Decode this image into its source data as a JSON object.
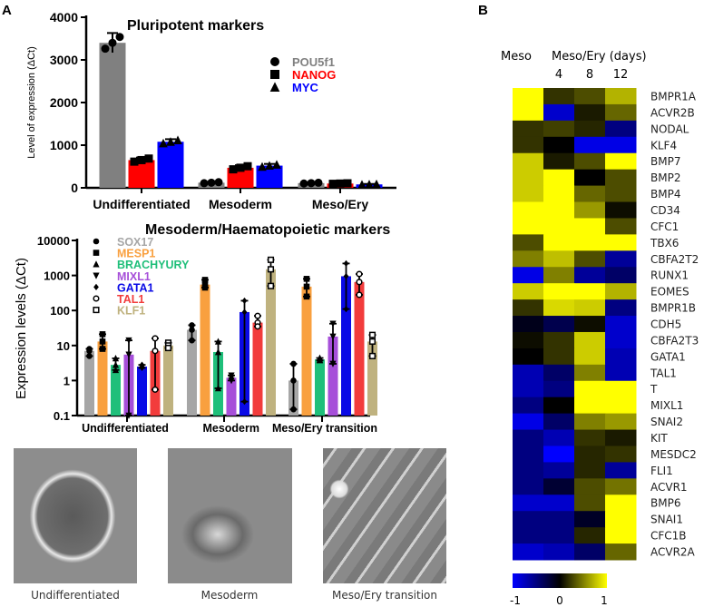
{
  "panel_labels": {
    "a": "A",
    "b": "B"
  },
  "chart_data": [
    {
      "type": "bar",
      "title": "Pluripotent markers",
      "ylabel": "Level of expression (ΔCt)",
      "xlabel": "",
      "ylim": [
        0,
        4000
      ],
      "yticks": [
        "0",
        "1000",
        "2000",
        "3000",
        "4000"
      ],
      "categories": [
        "Undifferentiated",
        "Mesoderm",
        "Meso/Ery"
      ],
      "legend_position": "top-right",
      "series": [
        {
          "name": "POU5f1",
          "color": "#808080",
          "marker": "circle",
          "values": [
            3400,
            120,
            110
          ],
          "err": [
            230,
            20,
            15
          ]
        },
        {
          "name": "NANOG",
          "color": "#ff0000",
          "marker": "square",
          "values": [
            650,
            470,
            100
          ],
          "err": [
            60,
            60,
            10
          ]
        },
        {
          "name": "MYC",
          "color": "#0000ff",
          "marker": "triangle",
          "values": [
            1080,
            520,
            80
          ],
          "err": [
            60,
            40,
            10
          ]
        }
      ]
    },
    {
      "type": "bar",
      "title": "Mesoderm/Haematopoietic markers",
      "ylabel": "Expression levels (ΔCt)",
      "xlabel": "",
      "yscale": "log",
      "ylim": [
        0.1,
        10000
      ],
      "yticks": [
        "0.1",
        "1",
        "10",
        "100",
        "1000",
        "10000"
      ],
      "categories": [
        "Undifferentiated",
        "Mesoderm",
        "Meso/Ery transition"
      ],
      "legend_position": "top-left",
      "series": [
        {
          "name": "SOX17",
          "color": "#a6a6a6",
          "marker": "circle",
          "values": [
            7,
            28,
            1
          ],
          "lo": [
            5,
            14,
            0.15
          ],
          "hi": [
            8,
            38,
            3
          ]
        },
        {
          "name": "MESP1",
          "color": "#f9a03f",
          "marker": "square",
          "values": [
            13,
            550,
            480
          ],
          "lo": [
            8,
            450,
            250
          ],
          "hi": [
            21,
            750,
            800
          ]
        },
        {
          "name": "BRACHYURY",
          "color": "#1fbf7a",
          "marker": "triangle",
          "values": [
            2.8,
            6.5,
            4
          ],
          "lo": [
            2,
            0.6,
            3.8
          ],
          "hi": [
            4.3,
            13,
            4.4
          ]
        },
        {
          "name": "MIXL1",
          "color": "#a64fd9",
          "marker": "triangle-down",
          "values": [
            5.5,
            1.2,
            18
          ],
          "lo": [
            0.1,
            1,
            3
          ],
          "hi": [
            14,
            1.4,
            42
          ]
        },
        {
          "name": "GATA1",
          "color": "#0a0ae6",
          "marker": "diamond",
          "values": [
            2.5,
            90,
            950
          ],
          "lo": [
            2.3,
            0.25,
            110
          ],
          "hi": [
            2.8,
            190,
            2200
          ]
        },
        {
          "name": "TAL1",
          "color": "#f23c3c",
          "marker": "open-circle",
          "values": [
            7,
            45,
            650
          ],
          "lo": [
            0.55,
            35,
            280
          ],
          "hi": [
            16,
            70,
            1100
          ]
        },
        {
          "name": "KLF1",
          "color": "#bfb27f",
          "marker": "open-square",
          "values": [
            10,
            1500,
            13
          ],
          "lo": [
            8.5,
            500,
            5
          ],
          "hi": [
            12,
            2800,
            20
          ]
        }
      ]
    },
    {
      "type": "heatmap",
      "column_group_labels": [
        "Meso",
        "Meso/Ery (days)"
      ],
      "columns": [
        "",
        "4",
        "8",
        "12"
      ],
      "colorscale": {
        "min": -1,
        "mid": 0,
        "max": 1,
        "colors": [
          "#0000ff",
          "#000000",
          "#ffff00"
        ],
        "tick_labels": [
          "-1",
          "0",
          "1"
        ]
      },
      "rows": [
        "BMPR1A",
        "ACVR2B",
        "NODAL",
        "KLF4",
        "BMP7",
        "BMP2",
        "BMP4",
        "CD34",
        "CFC1",
        "TBX6",
        "CBFA2T2",
        "RUNX1",
        "EOMES",
        "BMPR1B",
        "CDH5",
        "CBFA2T3",
        "GATA1",
        "TAL1",
        "T",
        "MIXL1",
        "SNAI2",
        "KIT",
        "MESDC2",
        "FLI1",
        "ACVR1",
        "BMP6",
        "SNAI1",
        "CFC1B",
        "ACVR2A"
      ],
      "values": [
        [
          1,
          0.2,
          0.3,
          0.7
        ],
        [
          1,
          -0.8,
          0.1,
          0.4
        ],
        [
          0.2,
          0.25,
          0.15,
          -0.5
        ],
        [
          0.2,
          0,
          -0.9,
          -0.9
        ],
        [
          0.8,
          0.1,
          0.3,
          1
        ],
        [
          0.8,
          1,
          0,
          0.3
        ],
        [
          0.8,
          1,
          0.4,
          0.3
        ],
        [
          1,
          1,
          0.6,
          0.05
        ],
        [
          1,
          1,
          1,
          0.3
        ],
        [
          0.3,
          1,
          1,
          1
        ],
        [
          0.5,
          0.75,
          0.3,
          -0.6
        ],
        [
          -0.9,
          0.5,
          -0.6,
          -0.4
        ],
        [
          0.8,
          1,
          1,
          0.7
        ],
        [
          0.2,
          0.85,
          0.8,
          -0.5
        ],
        [
          -0.1,
          -0.3,
          0.05,
          -0.8
        ],
        [
          0.05,
          0.2,
          0.8,
          -0.8
        ],
        [
          0,
          0.2,
          0.8,
          -0.7
        ],
        [
          -0.7,
          -0.4,
          0.5,
          -0.7
        ],
        [
          -0.7,
          -0.5,
          1,
          1
        ],
        [
          -0.5,
          0,
          1,
          1
        ],
        [
          -0.9,
          -0.4,
          0.5,
          0.6
        ],
        [
          -0.5,
          -0.7,
          0.2,
          0.1
        ],
        [
          -0.5,
          -1,
          0.15,
          0.2
        ],
        [
          -0.5,
          -0.6,
          0.15,
          -0.6
        ],
        [
          -0.5,
          -0.2,
          0.3,
          0.45
        ],
        [
          -0.8,
          -0.8,
          0.3,
          1
        ],
        [
          -0.5,
          -0.5,
          -0.15,
          1
        ],
        [
          -0.5,
          -0.5,
          0.15,
          1
        ],
        [
          -0.8,
          -0.7,
          -0.4,
          0.4
        ]
      ]
    }
  ],
  "micrographs": [
    {
      "caption": "Undifferentiated"
    },
    {
      "caption": "Mesoderm"
    },
    {
      "caption": "Meso/Ery transition"
    }
  ]
}
